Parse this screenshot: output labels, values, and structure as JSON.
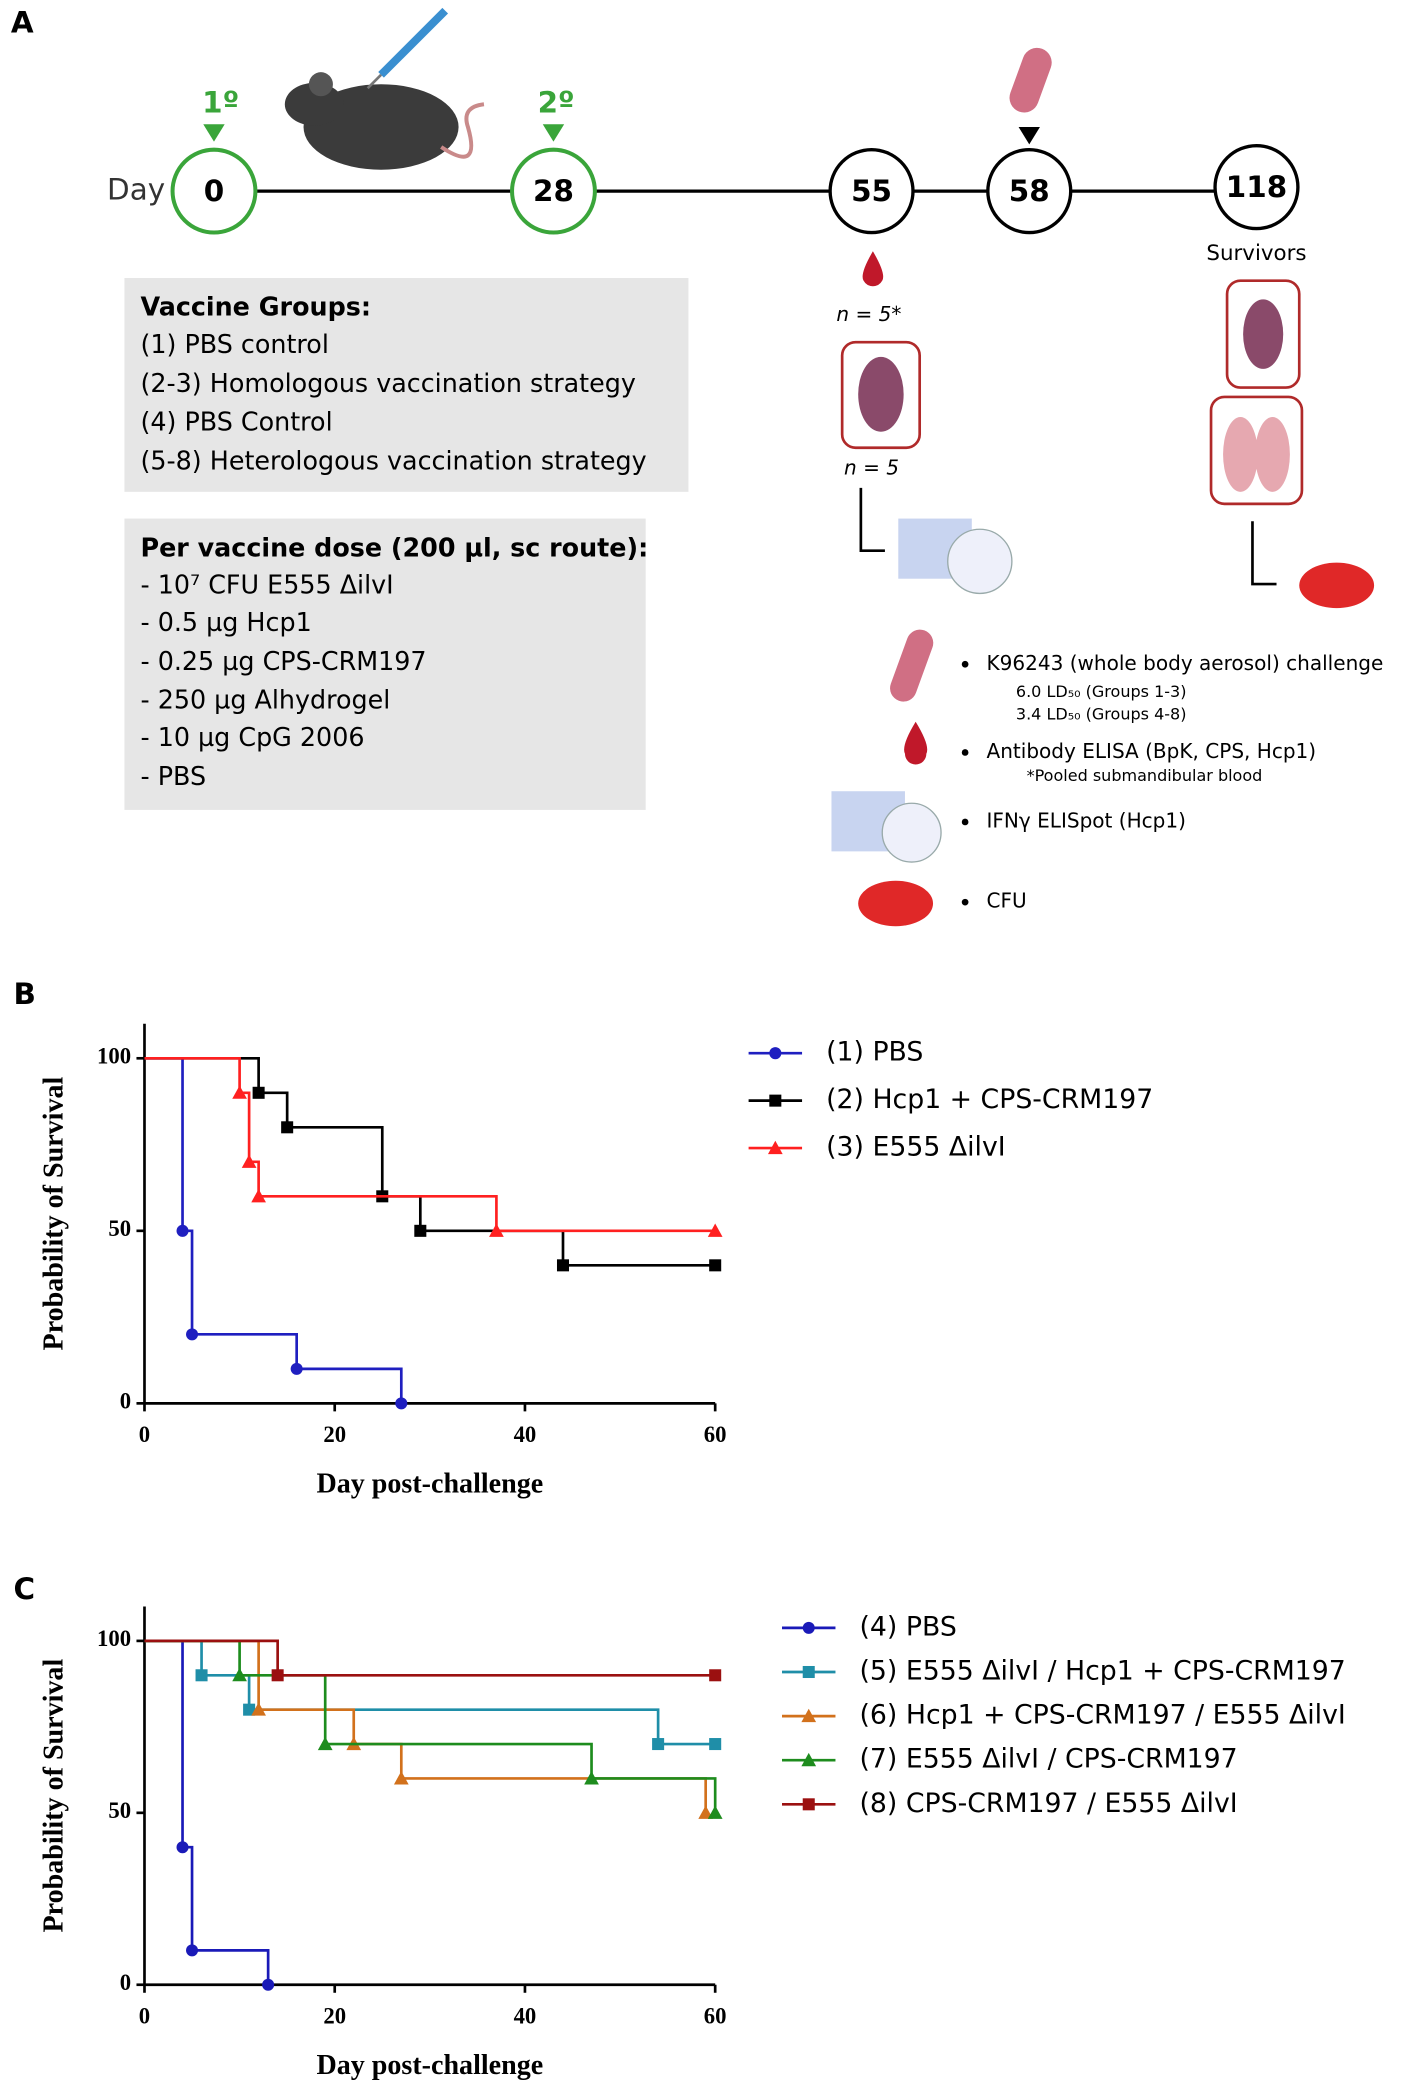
{
  "panel_a": {
    "label": "A",
    "day_label": "Day",
    "timeline": [
      {
        "day": "0",
        "dose": "1º"
      },
      {
        "day": "28",
        "dose": "2º"
      },
      {
        "day": "55"
      },
      {
        "day": "58"
      },
      {
        "day": "118"
      }
    ],
    "survivors": "Survivors",
    "n_blood": "n = 5*",
    "n_spleen": "n = 5",
    "vaccine_groups": {
      "title": "Vaccine Groups:",
      "lines": [
        "(1) PBS control",
        "(2-3) Homologous vaccination strategy",
        "(4) PBS Control",
        "(5-8) Heterologous vaccination strategy"
      ]
    },
    "dose": {
      "title": "Per vaccine dose (200 µl, sc route):",
      "lines": [
        "- 10⁷ CFU E555 ΔilvI",
        "- 0.5 µg Hcp1",
        "- 0.25 µg CPS-CRM197",
        "- 250 µg Alhydrogel",
        "- 10 µg CpG 2006",
        "- PBS"
      ]
    },
    "legend": [
      {
        "text": "K96243 (whole body aerosol) challenge",
        "notes": [
          "6.0 LD₅₀ (Groups 1-3)",
          "3.4 LD₅₀ (Groups 4-8)"
        ]
      },
      {
        "text": "Antibody ELISA (BpK, CPS, Hcp1)",
        "notes": [
          "*Pooled submandibular blood"
        ]
      },
      {
        "text": "IFNγ ELISpot (Hcp1)",
        "notes": []
      },
      {
        "text": "CFU",
        "notes": []
      }
    ]
  },
  "chart_data": [
    {
      "type": "survival",
      "panel_label": "B",
      "x_label": "Day post-challenge",
      "y_label": "Probability of Survival",
      "xlim": [
        0,
        60
      ],
      "ylim": [
        0,
        110
      ],
      "xticks": [
        0,
        20,
        40,
        60
      ],
      "yticks": [
        0,
        50,
        100
      ],
      "series": [
        {
          "name": "(1) PBS",
          "color": "#1f1fc0",
          "marker": "circle",
          "x": [
            0,
            4,
            5,
            16,
            27
          ],
          "values": [
            100,
            50,
            20,
            10,
            0
          ]
        },
        {
          "name": "(2) Hcp1 + CPS-CRM197",
          "color": "#000000",
          "marker": "square",
          "x": [
            0,
            12,
            15,
            25,
            29,
            44,
            60
          ],
          "values": [
            100,
            90,
            80,
            60,
            50,
            40,
            40
          ]
        },
        {
          "name": "(3) E555 ΔilvI",
          "color": "#ff2020",
          "marker": "triangle",
          "x": [
            0,
            10,
            11,
            12,
            37,
            60
          ],
          "values": [
            100,
            90,
            70,
            60,
            50,
            50
          ]
        }
      ]
    },
    {
      "type": "survival",
      "panel_label": "C",
      "x_label": "Day post-challenge",
      "y_label": "Probability of Survival",
      "xlim": [
        0,
        60
      ],
      "ylim": [
        0,
        110
      ],
      "xticks": [
        0,
        20,
        40,
        60
      ],
      "yticks": [
        0,
        50,
        100
      ],
      "series": [
        {
          "name": "(4) PBS",
          "color": "#1a1ab8",
          "marker": "circle",
          "x": [
            0,
            4,
            5,
            13
          ],
          "values": [
            100,
            40,
            10,
            0
          ]
        },
        {
          "name": "(5) E555 ΔilvI / Hcp1 + CPS-CRM197",
          "color": "#1f8ea8",
          "marker": "square",
          "x": [
            0,
            6,
            11,
            54,
            60
          ],
          "values": [
            100,
            90,
            80,
            70,
            70
          ]
        },
        {
          "name": "(6) Hcp1 + CPS-CRM197 / E555 ΔilvI",
          "color": "#d2711c",
          "marker": "triangle",
          "x": [
            0,
            12,
            22,
            27,
            59
          ],
          "values": [
            100,
            80,
            70,
            60,
            50
          ]
        },
        {
          "name": "(7) E555 ΔilvI / CPS-CRM197",
          "color": "#1e8c1e",
          "marker": "triangle",
          "x": [
            0,
            10,
            19,
            47,
            60
          ],
          "values": [
            100,
            90,
            70,
            60,
            50
          ]
        },
        {
          "name": "(8) CPS-CRM197 / E555 ΔilvI",
          "color": "#9b1010",
          "marker": "square",
          "x": [
            0,
            14,
            60
          ],
          "values": [
            100,
            90,
            90
          ]
        }
      ]
    }
  ]
}
